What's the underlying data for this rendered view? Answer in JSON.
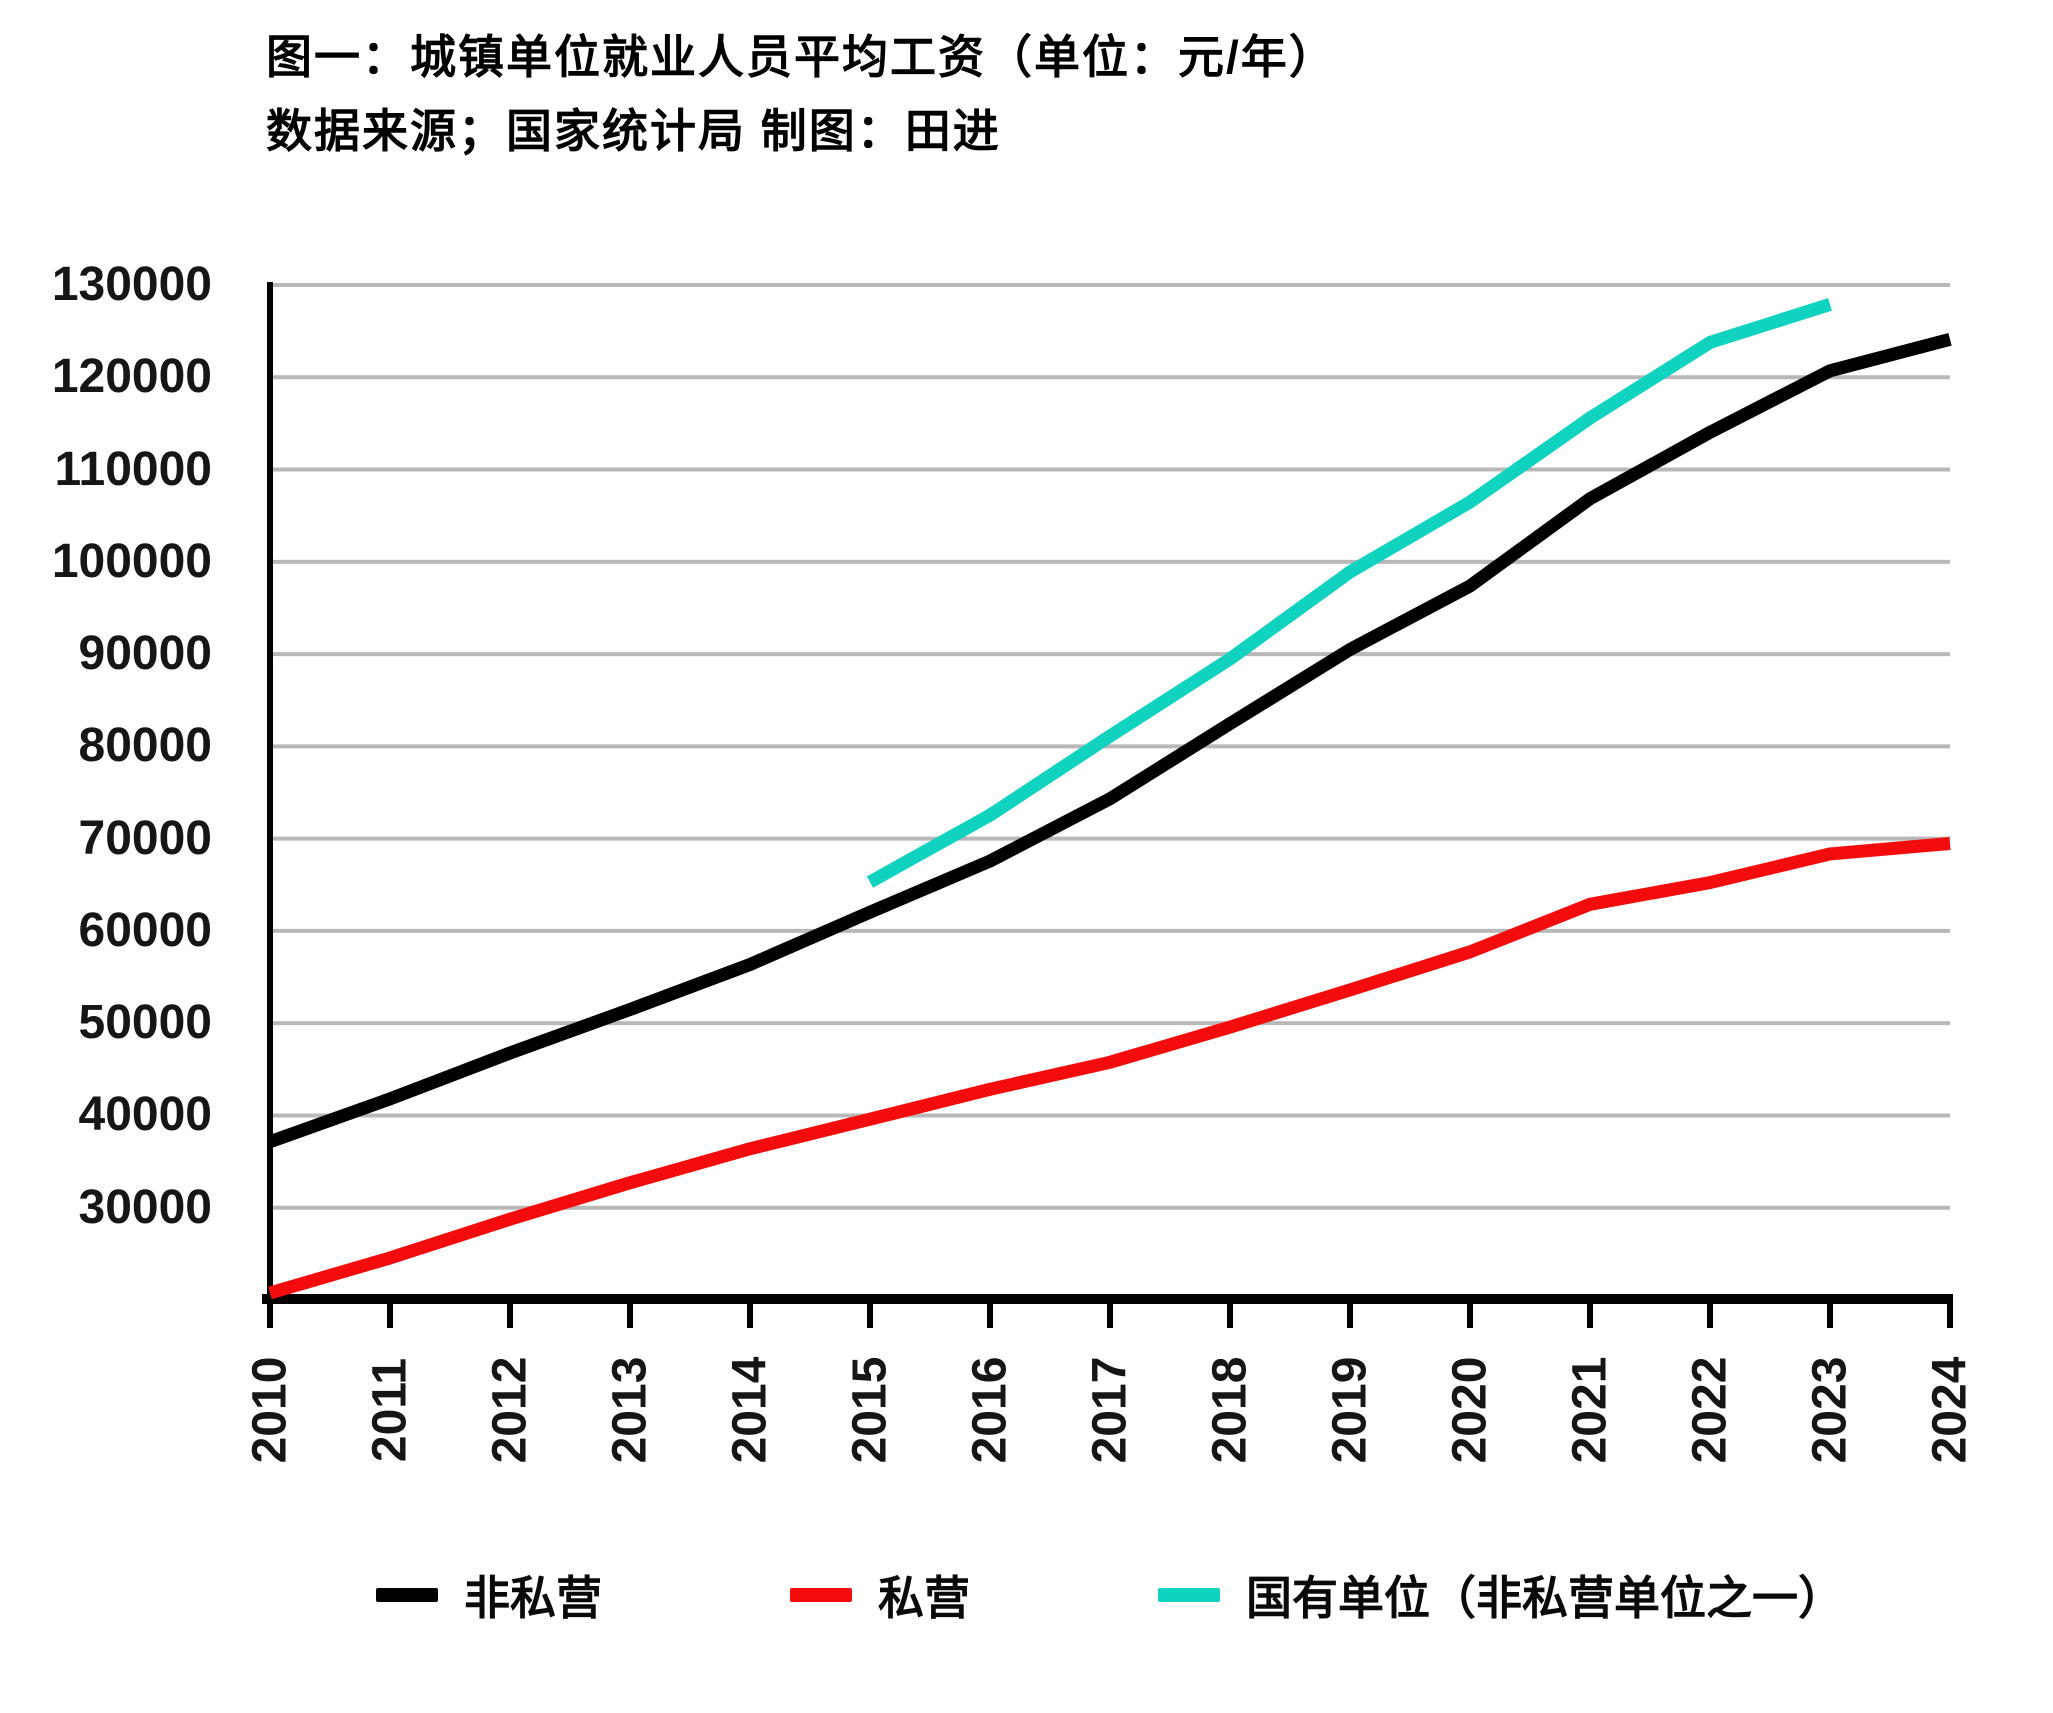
{
  "title": "图一：城镇单位就业人员平均工资（单位：元/年）",
  "subtitle": "数据来源；国家统计局 制图：田进",
  "colors": {
    "background": "#ffffff",
    "grid": "#b8b8b8",
    "axis": "#000000",
    "text": "#161616",
    "non_private": "#000000",
    "private": "#f40b0b",
    "state_owned": "#0fd2bf"
  },
  "chart_data": {
    "type": "line",
    "title": "图一：城镇单位就业人员平均工资（单位：元/年）",
    "source_note": "数据来源；国家统计局 制图：田进",
    "xlabel": "",
    "ylabel": "",
    "grid": "horizontal-major-only",
    "legend_position": "bottom",
    "ylim": [
      20000,
      130000
    ],
    "y_gridlines": [
      30000,
      40000,
      50000,
      60000,
      70000,
      80000,
      90000,
      100000,
      110000,
      120000,
      130000
    ],
    "y_tick_labels": [
      "30000",
      "40000",
      "50000",
      "60000",
      "70000",
      "80000",
      "90000",
      "100000",
      "110000",
      "120000",
      "130000"
    ],
    "x_tick_labels": [
      "2010",
      "2011",
      "2012",
      "2013",
      "2014",
      "2015",
      "2016",
      "2017",
      "2018",
      "2019",
      "2020",
      "2021",
      "2022",
      "2023",
      "2024"
    ],
    "series": [
      {
        "key": "non_private",
        "name": "非私营",
        "color": "#000000",
        "x": [
          2010,
          2011,
          2012,
          2013,
          2014,
          2015,
          2016,
          2017,
          2018,
          2019,
          2020,
          2021,
          2022,
          2023,
          2024
        ],
        "values": [
          37147,
          41799,
          46769,
          51483,
          56360,
          62029,
          67569,
          74318,
          82461,
          90501,
          97379,
          106837,
          114029,
          120698,
          124110
        ]
      },
      {
        "key": "private",
        "name": "私营",
        "color": "#f40b0b",
        "x": [
          2010,
          2011,
          2012,
          2013,
          2014,
          2015,
          2016,
          2017,
          2018,
          2019,
          2020,
          2021,
          2022,
          2023,
          2024
        ],
        "values": [
          20759,
          24556,
          28752,
          32706,
          36390,
          39589,
          42833,
          45761,
          49575,
          53604,
          57727,
          62884,
          65237,
          68340,
          69476
        ]
      },
      {
        "key": "state_owned",
        "name": "国有单位（非私营单位之一）",
        "color": "#0fd2bf",
        "x": [
          2015,
          2016,
          2017,
          2018,
          2019,
          2020,
          2021,
          2022,
          2023
        ],
        "values": [
          65296,
          72538,
          81114,
          89474,
          98899,
          106474,
          115583,
          123775,
          127900
        ]
      }
    ]
  },
  "legend": {
    "items": [
      {
        "label": "非私营",
        "color": "#000000"
      },
      {
        "label": "私营",
        "color": "#f40b0b"
      },
      {
        "label": "国有单位（非私营单位之一）",
        "color": "#0fd2bf"
      }
    ]
  }
}
